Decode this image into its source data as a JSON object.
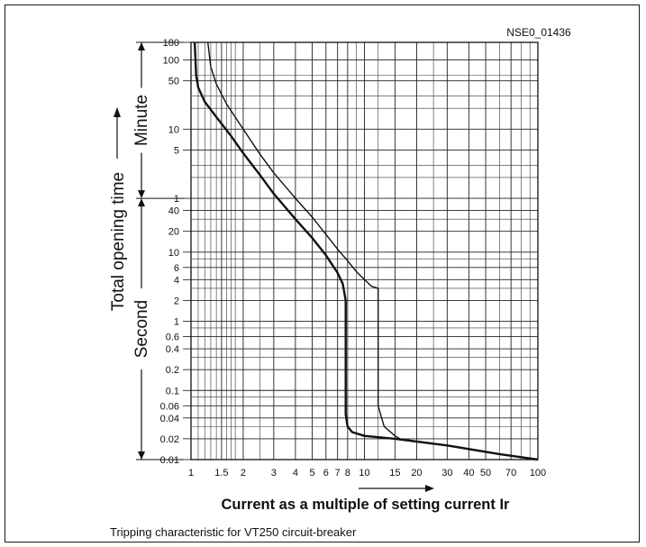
{
  "chart_data": {
    "type": "line",
    "id_label": "NSE0_01436",
    "xlabel": "Current as a multiple of setting current Ir",
    "caption": "Tripping characteristic for VT250 circuit-breaker",
    "y_axis": {
      "title": "Total opening time",
      "minute_label": "Minute",
      "second_label": "Second",
      "minute_ticks": [
        {
          "label": "180",
          "value": 10800
        },
        {
          "label": "100",
          "value": 6000
        },
        {
          "label": "50",
          "value": 3000
        },
        {
          "label": "10",
          "value": 600
        },
        {
          "label": "5",
          "value": 300
        },
        {
          "label": "1",
          "value": 60
        }
      ],
      "second_ticks": [
        {
          "label": "40",
          "value": 40
        },
        {
          "label": "20",
          "value": 20
        },
        {
          "label": "10",
          "value": 10
        },
        {
          "label": "6",
          "value": 6
        },
        {
          "label": "4",
          "value": 4
        },
        {
          "label": "2",
          "value": 2
        },
        {
          "label": "1",
          "value": 1
        },
        {
          "label": "0.6",
          "value": 0.6
        },
        {
          "label": "0.4",
          "value": 0.4
        },
        {
          "label": "0.2",
          "value": 0.2
        },
        {
          "label": "0.1",
          "value": 0.1
        },
        {
          "label": "0.06",
          "value": 0.06
        },
        {
          "label": "0.04",
          "value": 0.04
        },
        {
          "label": "0.02",
          "value": 0.02
        },
        {
          "label": "0.01",
          "value": 0.01
        }
      ],
      "range_seconds": [
        0.01,
        10800
      ],
      "scale": "log"
    },
    "x_axis": {
      "range": [
        1,
        100
      ],
      "scale": "log",
      "ticks": [
        {
          "label": "1",
          "value": 1
        },
        {
          "label": "1.5",
          "value": 1.5
        },
        {
          "label": "2",
          "value": 2
        },
        {
          "label": "3",
          "value": 3
        },
        {
          "label": "4",
          "value": 4
        },
        {
          "label": "5",
          "value": 5
        },
        {
          "label": "6",
          "value": 6
        },
        {
          "label": "7",
          "value": 7
        },
        {
          "label": "8",
          "value": 8
        },
        {
          "label": "10",
          "value": 10
        },
        {
          "label": "15",
          "value": 15
        },
        {
          "label": "20",
          "value": 20
        },
        {
          "label": "30",
          "value": 30
        },
        {
          "label": "40",
          "value": 40
        },
        {
          "label": "50",
          "value": 50
        },
        {
          "label": "70",
          "value": 70
        },
        {
          "label": "100",
          "value": 100
        }
      ]
    },
    "grid": true,
    "series": [
      {
        "band": "lower",
        "points": [
          [
            1.05,
            10800
          ],
          [
            1.07,
            3600
          ],
          [
            1.1,
            2400
          ],
          [
            1.2,
            1500
          ],
          [
            1.4,
            900
          ],
          [
            1.7,
            480
          ],
          [
            2,
            270
          ],
          [
            2.5,
            130
          ],
          [
            3,
            70
          ],
          [
            4,
            30
          ],
          [
            5,
            16
          ],
          [
            6,
            9
          ],
          [
            7,
            5
          ],
          [
            7.5,
            3.5
          ],
          [
            7.8,
            2
          ],
          [
            7.8,
            0.045
          ],
          [
            8,
            0.03
          ],
          [
            8.5,
            0.025
          ],
          [
            10,
            0.022
          ],
          [
            15,
            0.02
          ],
          [
            30,
            0.016
          ],
          [
            60,
            0.012
          ],
          [
            100,
            0.01
          ]
        ]
      },
      {
        "band": "upper",
        "points": [
          [
            1.25,
            10800
          ],
          [
            1.3,
            4800
          ],
          [
            1.4,
            2700
          ],
          [
            1.6,
            1400
          ],
          [
            2,
            600
          ],
          [
            2.5,
            260
          ],
          [
            3,
            140
          ],
          [
            4,
            60
          ],
          [
            5,
            32
          ],
          [
            6,
            18
          ],
          [
            7,
            11
          ],
          [
            8,
            7.5
          ],
          [
            9,
            5.2
          ],
          [
            10,
            4
          ],
          [
            11,
            3.2
          ],
          [
            12,
            3
          ],
          [
            12,
            0.06
          ],
          [
            13,
            0.03
          ],
          [
            15,
            0.022
          ],
          [
            16,
            0.02
          ],
          [
            30,
            0.016
          ],
          [
            60,
            0.012
          ],
          [
            100,
            0.01
          ]
        ]
      }
    ]
  }
}
